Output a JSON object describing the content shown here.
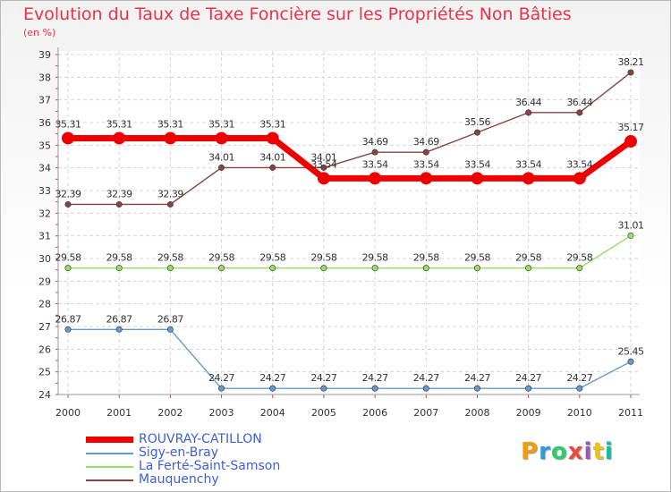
{
  "title": "Evolution du Taux de Taxe Foncière sur les Propriétés Non Bâties",
  "unit_label": "(en %)",
  "logo_text": "Proxiti",
  "logo_colors": [
    "#f39c12",
    "#3498db",
    "#2ecc71",
    "#e74c3c",
    "#9b59b6",
    "#f1c40f",
    "#1abc9c"
  ],
  "chart_data": {
    "type": "line",
    "title": "Evolution du Taux de Taxe Foncière sur les Propriétés Non Bâties",
    "ylabel": "(en %)",
    "xlabel": "",
    "ylim": [
      24,
      39
    ],
    "yticks": [
      "24",
      "25",
      "26",
      "27",
      "28",
      "29",
      "30",
      "31",
      "32",
      "33",
      "34",
      "35",
      "36",
      "37",
      "38",
      "39"
    ],
    "categories": [
      "2000",
      "2001",
      "2002",
      "2003",
      "2004",
      "2005",
      "2006",
      "2007",
      "2008",
      "2009",
      "2010",
      "2011"
    ],
    "grid": true,
    "series": [
      {
        "name": "ROUVRAY-CATILLON",
        "color": "#ee0000",
        "emphasis": true,
        "values": [
          35.31,
          35.31,
          35.31,
          35.31,
          35.31,
          33.54,
          33.54,
          33.54,
          33.54,
          33.54,
          33.54,
          35.17
        ],
        "labels": [
          "35.31",
          "35.31",
          "35.31",
          "35.31",
          "35.31",
          "33.54",
          "33.54",
          "33.54",
          "33.54",
          "33.54",
          "33.54",
          "35.17"
        ]
      },
      {
        "name": "Sigy-en-Bray",
        "color": "#6699cc",
        "emphasis": false,
        "values": [
          26.87,
          26.87,
          26.87,
          24.27,
          24.27,
          24.27,
          24.27,
          24.27,
          24.27,
          24.27,
          24.27,
          25.45
        ],
        "labels": [
          "26.87",
          "26.87",
          "26.87",
          "24.27",
          "24.27",
          "24.27",
          "24.27",
          "24.27",
          "24.27",
          "24.27",
          "24.27",
          "25.45"
        ]
      },
      {
        "name": "La Ferté-Saint-Samson",
        "color": "#99dd66",
        "emphasis": false,
        "values": [
          29.58,
          29.58,
          29.58,
          29.58,
          29.58,
          29.58,
          29.58,
          29.58,
          29.58,
          29.58,
          29.58,
          31.01
        ],
        "labels": [
          "29.58",
          "29.58",
          "29.58",
          "29.58",
          "29.58",
          "29.58",
          "29.58",
          "29.58",
          "29.58",
          "29.58",
          "29.58",
          "31.01"
        ]
      },
      {
        "name": "Mauquenchy",
        "color": "#884444",
        "emphasis": false,
        "values": [
          32.39,
          32.39,
          32.39,
          34.01,
          34.01,
          34.01,
          34.69,
          34.69,
          35.56,
          36.44,
          36.44,
          38.21
        ],
        "labels": [
          "32.39",
          "32.39",
          "32.39",
          "34.01",
          "34.01",
          "34.01",
          "34.69",
          "34.69",
          "35.56",
          "36.44",
          "36.44",
          "38.21"
        ]
      }
    ]
  }
}
